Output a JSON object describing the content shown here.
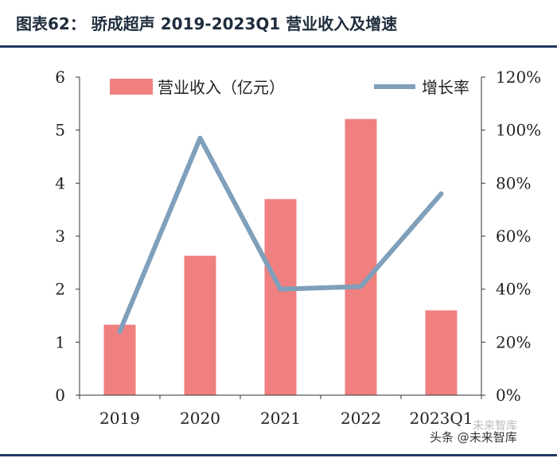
{
  "header": {
    "title": "图表62：    骄成超声 2019-2023Q1 营业收入及增速"
  },
  "chart_data": {
    "type": "bar",
    "categories": [
      "2019",
      "2020",
      "2021",
      "2022",
      "2023Q1"
    ],
    "series": [
      {
        "name": "营业收入（亿元）",
        "type": "bar",
        "axis": "left",
        "values": [
          1.33,
          2.63,
          3.7,
          5.21,
          1.6
        ]
      },
      {
        "name": "增长率",
        "type": "line",
        "axis": "right",
        "values": [
          0.24,
          0.97,
          0.4,
          0.41,
          0.76
        ]
      }
    ],
    "ylim_left": [
      0,
      6
    ],
    "left_ticks": [
      "0",
      "1",
      "2",
      "3",
      "4",
      "5",
      "6"
    ],
    "ylim_right": [
      0,
      1.2
    ],
    "right_ticks": [
      "0%",
      "20%",
      "40%",
      "60%",
      "80%",
      "100%",
      "120%"
    ],
    "legend_position": "top",
    "colors": {
      "bar": "#f08080",
      "line": "#7f9fbb",
      "axis": "#333333"
    }
  },
  "watermark": {
    "text": "头条 @未来智库",
    "faint": "未来智库"
  }
}
